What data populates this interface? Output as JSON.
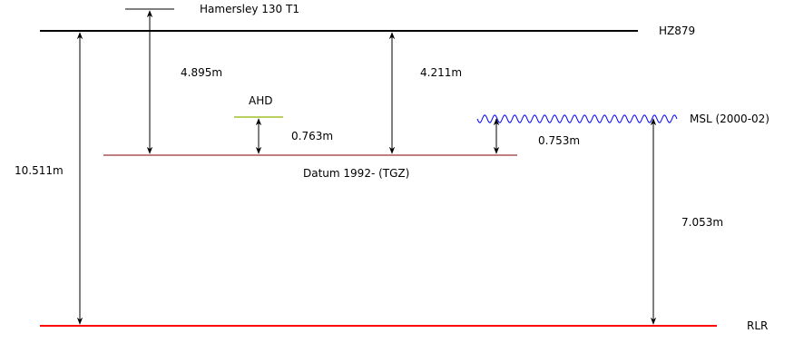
{
  "labels": {
    "hamersley": "Hamersley 130 T1",
    "hz879": "HZ879",
    "ahd": "AHD",
    "msl": "MSL (2000-02)",
    "datum": "Datum 1992- (TGZ)",
    "rlr": "RLR"
  },
  "measurements": {
    "hamersley_to_datum": "4.895m",
    "hz879_to_datum": "4.211m",
    "ahd_to_datum": "0.763m",
    "msl_to_datum": "0.753m",
    "msl_to_rlr": "7.053m",
    "hz879_to_rlr": "10.511m"
  },
  "colors": {
    "hz879_line": "#000000",
    "hamersley_line": "#000000",
    "ahd_line": "#8fb300",
    "msl_wave": "#0000ff",
    "datum_line": "#800000",
    "rlr_line": "#ff0000",
    "arrows": "#000000"
  }
}
